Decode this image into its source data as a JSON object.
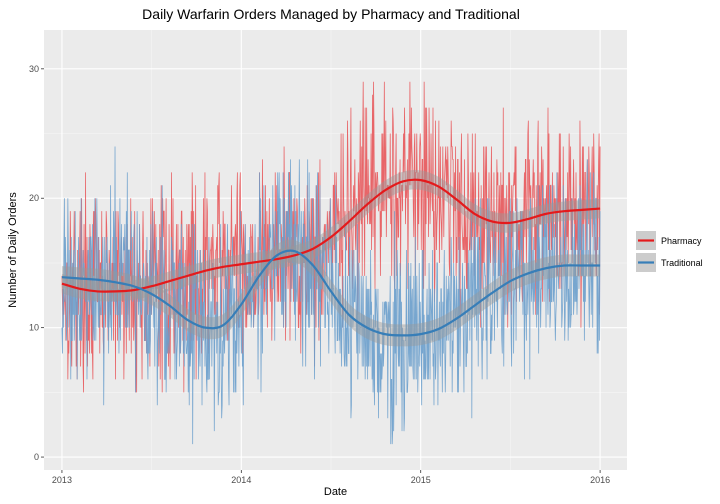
{
  "chart_data": {
    "type": "line",
    "title": "Daily Warfarin Orders Managed by Pharmacy and Traditional",
    "xlabel": "Date",
    "ylabel": "Number of Daily Orders",
    "x_ticks": [
      {
        "label": "2013",
        "value": 2013.0
      },
      {
        "label": "2014",
        "value": 2014.0
      },
      {
        "label": "2015",
        "value": 2015.0
      },
      {
        "label": "2016",
        "value": 2016.0
      }
    ],
    "y_ticks": [
      0,
      10,
      20,
      30
    ],
    "xlim": [
      2012.9,
      2016.15
    ],
    "ylim": [
      -1.0,
      33.0
    ],
    "grid": true,
    "legend_position": "right",
    "series": [
      {
        "name": "Pharmacy",
        "color": "#e41a1c",
        "raw_color": "#e8575a",
        "smooth": {
          "x": [
            2013.0,
            2013.1,
            2013.2,
            2013.3,
            2013.4,
            2013.5,
            2013.6,
            2013.7,
            2013.8,
            2013.9,
            2014.0,
            2014.1,
            2014.2,
            2014.3,
            2014.4,
            2014.5,
            2014.6,
            2014.7,
            2014.8,
            2014.9,
            2015.0,
            2015.1,
            2015.2,
            2015.3,
            2015.4,
            2015.5,
            2015.6,
            2015.7,
            2015.8,
            2015.9,
            2016.0
          ],
          "y": [
            13.4,
            13.0,
            12.8,
            12.8,
            12.9,
            13.2,
            13.6,
            14.0,
            14.4,
            14.7,
            14.9,
            15.1,
            15.3,
            15.6,
            16.1,
            17.0,
            18.2,
            19.5,
            20.6,
            21.3,
            21.4,
            20.9,
            19.9,
            18.8,
            18.2,
            18.1,
            18.4,
            18.8,
            19.0,
            19.1,
            19.2
          ]
        },
        "band_halfwidth": 0.75,
        "daily_mean_trend": "smooth",
        "daily_spread": 4.6,
        "daily_min": 5,
        "daily_max": 32,
        "seed": 17
      },
      {
        "name": "Traditional",
        "color": "#377eb8",
        "raw_color": "#6a9fcc",
        "smooth": {
          "x": [
            2013.0,
            2013.1,
            2013.2,
            2013.3,
            2013.4,
            2013.5,
            2013.6,
            2013.7,
            2013.8,
            2013.9,
            2014.0,
            2014.1,
            2014.2,
            2014.3,
            2014.4,
            2014.5,
            2014.6,
            2014.7,
            2014.8,
            2014.9,
            2015.0,
            2015.1,
            2015.2,
            2015.3,
            2015.4,
            2015.5,
            2015.6,
            2015.7,
            2015.8,
            2015.9,
            2016.0
          ],
          "y": [
            13.9,
            13.8,
            13.7,
            13.5,
            13.2,
            12.6,
            11.7,
            10.6,
            10.0,
            10.2,
            11.8,
            14.0,
            15.6,
            15.9,
            14.8,
            12.8,
            11.0,
            10.0,
            9.5,
            9.4,
            9.5,
            9.9,
            10.7,
            11.7,
            12.7,
            13.6,
            14.2,
            14.6,
            14.8,
            14.8,
            14.8
          ]
        },
        "band_halfwidth": 0.85,
        "daily_mean_trend": "smooth",
        "daily_spread": 4.6,
        "daily_min": 1,
        "daily_max": 25,
        "seed": 91
      }
    ]
  }
}
